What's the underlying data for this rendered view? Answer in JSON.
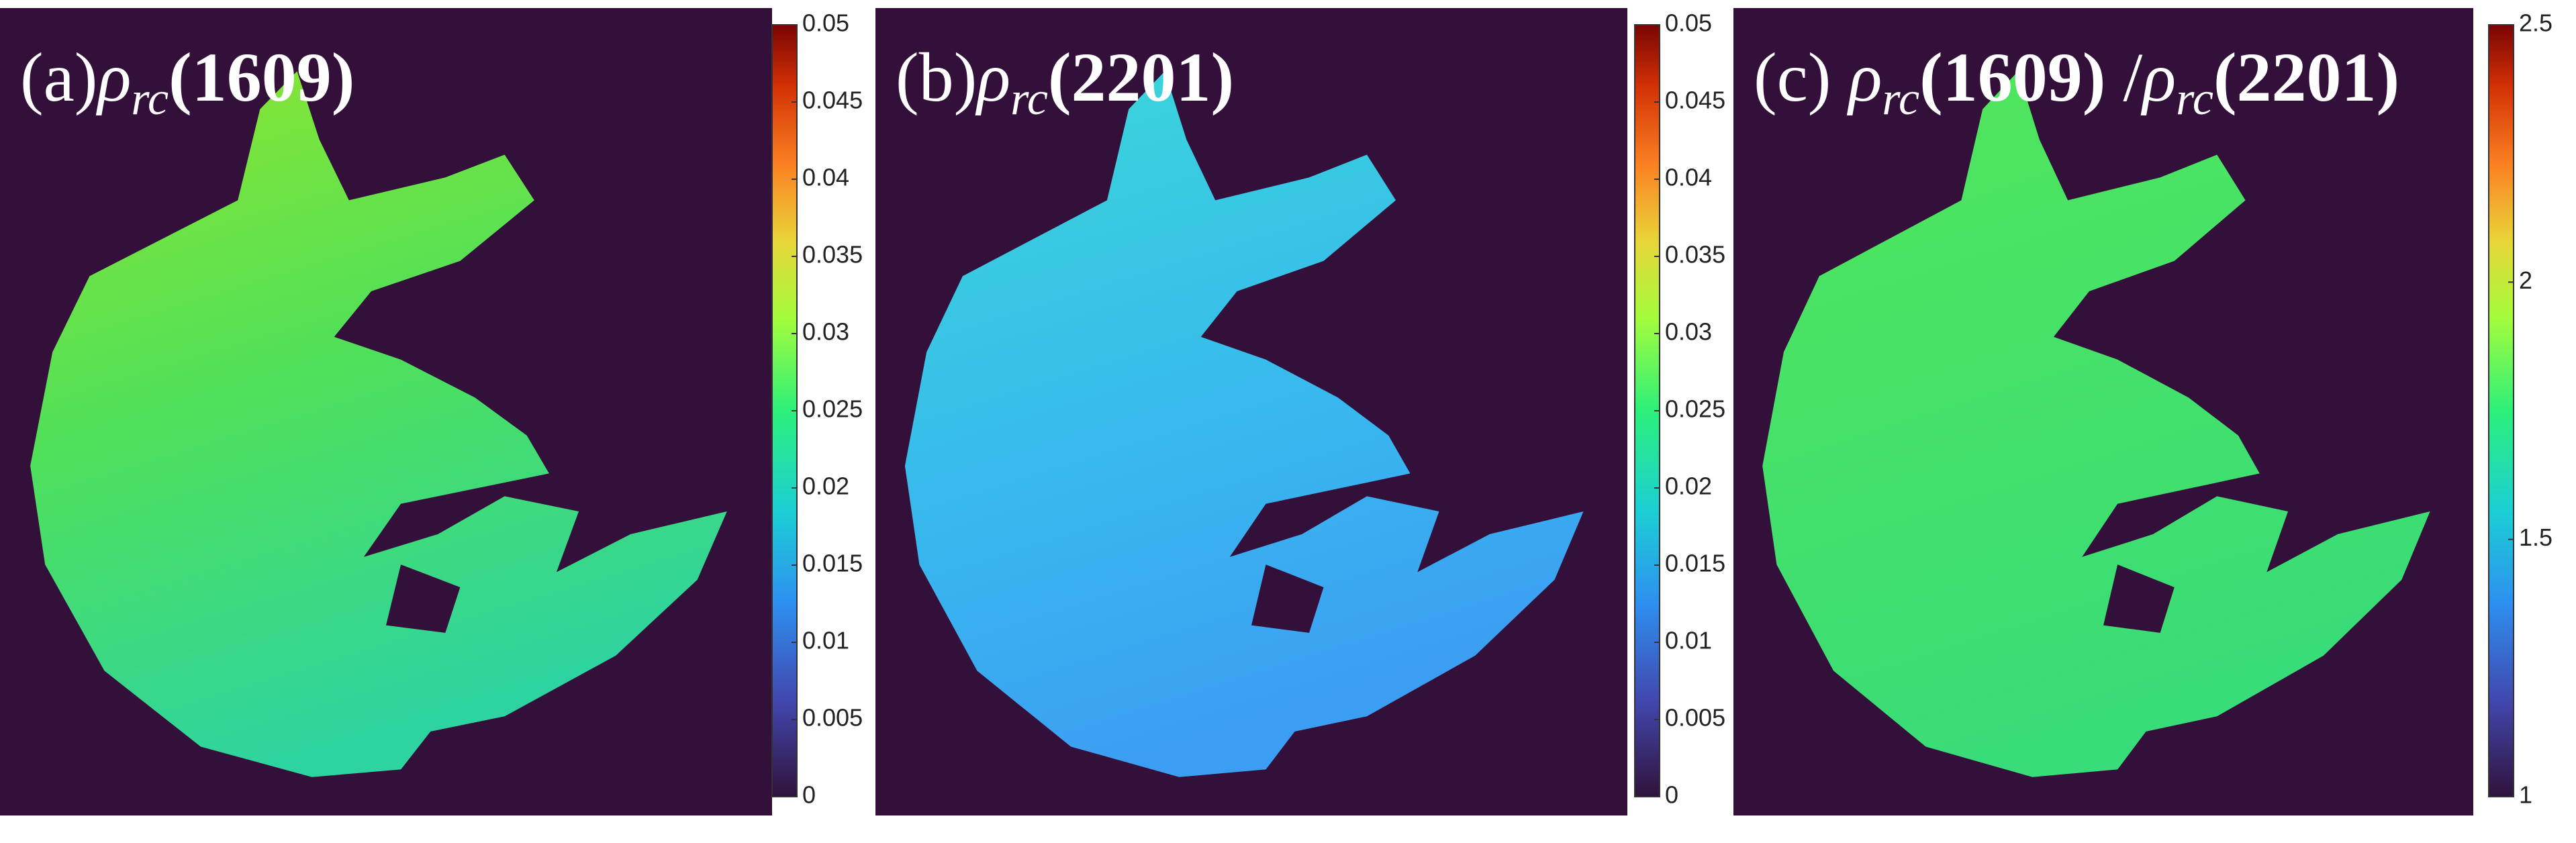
{
  "chart_data": [
    {
      "type": "map",
      "title_parts": [
        "(a)",
        "ρ",
        "rc",
        "(1609)"
      ],
      "clim": [
        0,
        0.05
      ],
      "cticks": [
        0,
        0.005,
        0.01,
        0.015,
        0.02,
        0.025,
        0.03,
        0.035,
        0.04,
        0.045,
        0.05
      ]
    },
    {
      "type": "map",
      "title_parts": [
        "(b)",
        "ρ",
        "rc",
        "(2201)"
      ],
      "clim": [
        0,
        0.05
      ],
      "cticks": [
        0,
        0.005,
        0.01,
        0.015,
        0.02,
        0.025,
        0.03,
        0.035,
        0.04,
        0.045,
        0.05
      ]
    },
    {
      "type": "map",
      "title_parts": [
        "(c) ",
        "ρ",
        "rc",
        "(1609)",
        " /",
        "ρ",
        "rc",
        "(2201)"
      ],
      "clim": [
        1,
        2.5
      ],
      "cticks": [
        1,
        1.5,
        2,
        2.5
      ]
    }
  ]
}
